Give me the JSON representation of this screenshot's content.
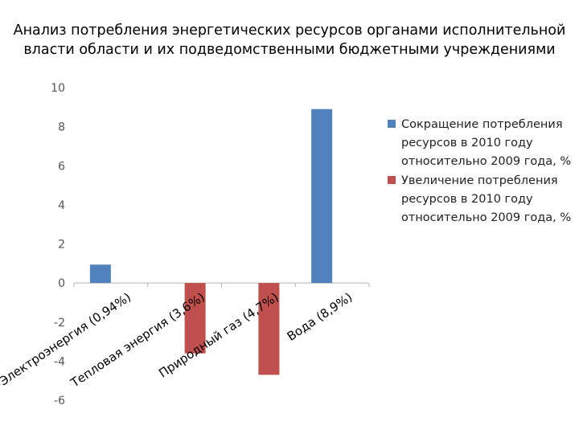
{
  "title_line1": "Анализ потребления энергетических ресурсов органами исполнительной",
  "title_line2": "власти области и их подведомственными бюджетными учреждениями",
  "chart_data": {
    "type": "bar",
    "categories": [
      "Электроэнергия (0,94%)",
      "Тепловая энергия (3,6%)",
      "Природный газ (4,7%)",
      "Вода (8,9%)"
    ],
    "series": [
      {
        "name": "Сокращение потребления ресурсов в 2010 году относительно 2009 года, %",
        "name_lines": [
          "Сокращение потребления",
          "ресурсов в 2010 году",
          "относительно 2009 года, %"
        ],
        "color": "#4F81BD",
        "values": [
          0.94,
          null,
          null,
          8.9
        ]
      },
      {
        "name": "Увеличение потребления ресурсов в 2010 году относительно 2009 года, %",
        "name_lines": [
          "Увеличение потребления",
          "ресурсов в 2010 году",
          "относительно 2009 года, %"
        ],
        "color": "#C0504D",
        "values": [
          null,
          -3.6,
          -4.7,
          null
        ]
      }
    ],
    "y_ticks": [
      10,
      8,
      6,
      4,
      2,
      0,
      -2,
      -4,
      -6
    ],
    "ylim": [
      -6,
      10
    ],
    "grid": false,
    "legend_position": "right"
  }
}
